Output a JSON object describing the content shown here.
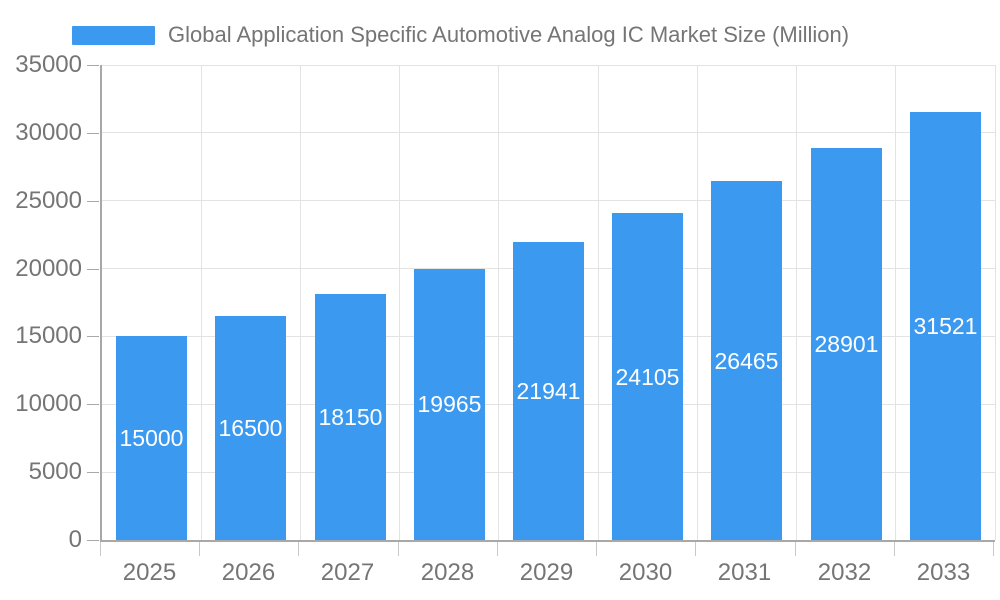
{
  "legend": {
    "series_label": "Global Application Specific Automotive Analog IC Market Size (Million)"
  },
  "chart_data": {
    "type": "bar",
    "title": "Global Application Specific Automotive Analog IC Market Size (Million)",
    "categories": [
      "2025",
      "2026",
      "2027",
      "2028",
      "2029",
      "2030",
      "2031",
      "2032",
      "2033"
    ],
    "values": [
      15000,
      16500,
      18150,
      19965,
      21941,
      24105,
      26465,
      28901,
      31521
    ],
    "value_labels": [
      "15000",
      "16500",
      "18150",
      "19965",
      "21941",
      "24105",
      "26465",
      "28901",
      "31521"
    ],
    "xlabel": "",
    "ylabel": "",
    "ylim": [
      0,
      35000
    ],
    "ytick_step": 5000,
    "yticks": [
      0,
      5000,
      10000,
      15000,
      20000,
      25000,
      30000,
      35000
    ],
    "ytick_labels": [
      "0",
      "5000",
      "10000",
      "15000",
      "20000",
      "25000",
      "30000",
      "35000"
    ],
    "grid": true,
    "legend_position": "top-left",
    "colors": {
      "bar": "#3b99f0",
      "bar_value_text": "#ffffff",
      "axis_line": "#a8a8a8",
      "gridline": "#e3e3e3",
      "axis_text": "#757575",
      "background": "#ffffff"
    }
  }
}
